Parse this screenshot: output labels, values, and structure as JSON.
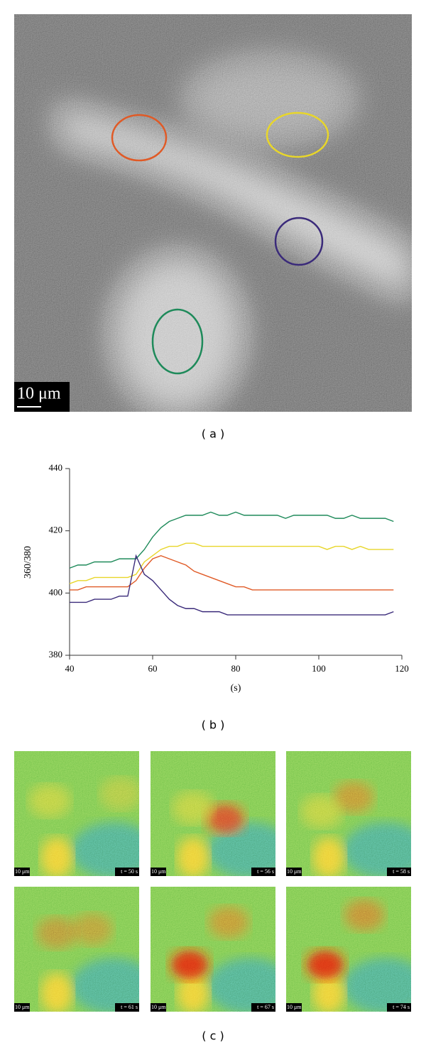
{
  "panel_a": {
    "scale_bar": "10 μm",
    "caption": "( a )"
  },
  "chart_data": {
    "type": "line",
    "ylabel": "360/380",
    "xlabel": "(s)",
    "caption": "( b )",
    "xlim": [
      40,
      120
    ],
    "xticks": [
      40,
      60,
      80,
      100,
      120
    ],
    "ylim": [
      380,
      440
    ],
    "yticks": [
      380,
      400,
      420,
      440
    ],
    "x": [
      40,
      42,
      44,
      46,
      48,
      50,
      52,
      54,
      56,
      58,
      60,
      62,
      64,
      66,
      68,
      70,
      72,
      74,
      76,
      78,
      80,
      82,
      84,
      86,
      88,
      90,
      92,
      94,
      96,
      98,
      100,
      102,
      104,
      106,
      108,
      110,
      112,
      114,
      116,
      118
    ],
    "series": [
      {
        "name": "green",
        "color": "#1e8a5a",
        "values": [
          408,
          409,
          409,
          410,
          410,
          410,
          411,
          411,
          411,
          414,
          418,
          421,
          423,
          424,
          425,
          425,
          425,
          426,
          425,
          425,
          426,
          425,
          425,
          425,
          425,
          425,
          424,
          425,
          425,
          425,
          425,
          425,
          424,
          424,
          425,
          424,
          424,
          424,
          424,
          423
        ]
      },
      {
        "name": "yellow",
        "color": "#e8d62a",
        "values": [
          403,
          404,
          404,
          405,
          405,
          405,
          405,
          405,
          406,
          410,
          412,
          414,
          415,
          415,
          416,
          416,
          415,
          415,
          415,
          415,
          415,
          415,
          415,
          415,
          415,
          415,
          415,
          415,
          415,
          415,
          415,
          414,
          415,
          415,
          414,
          415,
          414,
          414,
          414,
          414
        ]
      },
      {
        "name": "orange",
        "color": "#e05a26",
        "values": [
          401,
          401,
          402,
          402,
          402,
          402,
          402,
          402,
          404,
          408,
          411,
          412,
          411,
          410,
          409,
          407,
          406,
          405,
          404,
          403,
          402,
          402,
          401,
          401,
          401,
          401,
          401,
          401,
          401,
          401,
          401,
          401,
          401,
          401,
          401,
          401,
          401,
          401,
          401,
          401
        ]
      },
      {
        "name": "blue",
        "color": "#3a2a7a",
        "values": [
          397,
          397,
          397,
          398,
          398,
          398,
          399,
          399,
          412,
          406,
          404,
          401,
          398,
          396,
          395,
          395,
          394,
          394,
          394,
          393,
          393,
          393,
          393,
          393,
          393,
          393,
          393,
          393,
          393,
          393,
          393,
          393,
          393,
          393,
          393,
          393,
          393,
          393,
          393,
          394
        ]
      }
    ]
  },
  "panel_c": {
    "caption": "( c )",
    "frames": [
      {
        "scale_bar": "10 μm",
        "time": "t = 50 s"
      },
      {
        "scale_bar": "10 μm",
        "time": "t = 56 s"
      },
      {
        "scale_bar": "10 μm",
        "time": "t = 58 s"
      },
      {
        "scale_bar": "10 μm",
        "time": "t = 61 s"
      },
      {
        "scale_bar": "10 μm",
        "time": "t = 67 s"
      },
      {
        "scale_bar": "10 μm",
        "time": "t = 74 s"
      }
    ]
  }
}
